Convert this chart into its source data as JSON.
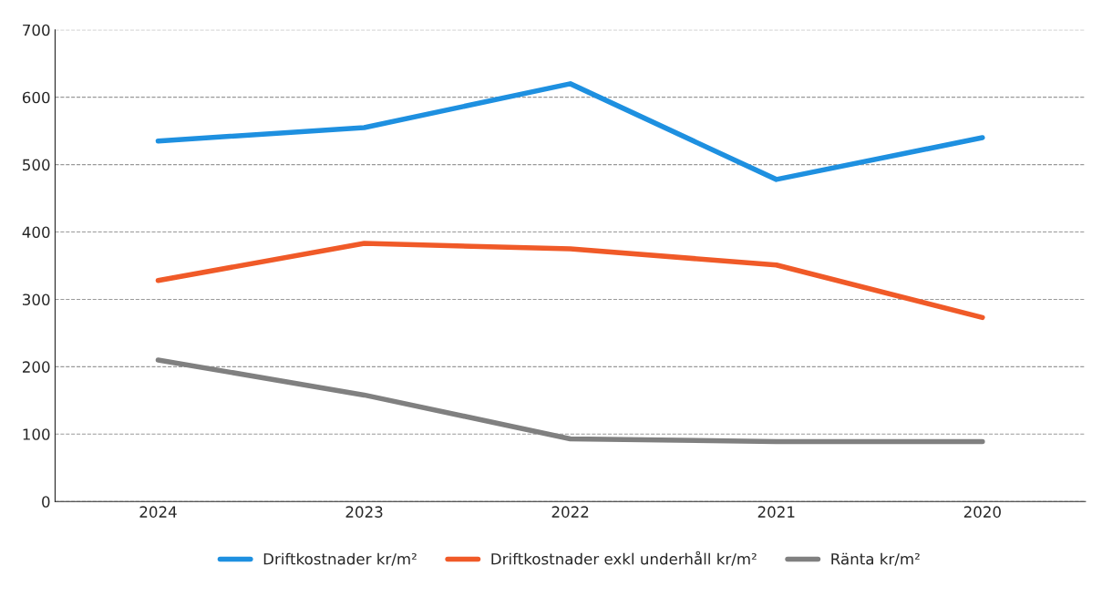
{
  "chart_data": {
    "type": "line",
    "categories": [
      "2024",
      "2023",
      "2022",
      "2021",
      "2020"
    ],
    "series": [
      {
        "name": "Driftkostnader kr/m²",
        "color": "#1e90e0",
        "values": [
          535,
          555,
          620,
          478,
          540
        ]
      },
      {
        "name": "Driftkostnader exkl underhåll kr/m²",
        "color": "#f05a28",
        "values": [
          328,
          383,
          375,
          351,
          273
        ]
      },
      {
        "name": "Ränta kr/m²",
        "color": "#808080",
        "values": [
          210,
          158,
          93,
          89,
          89
        ]
      }
    ],
    "ylim": [
      0,
      700
    ],
    "yticks": [
      0,
      100,
      200,
      300,
      400,
      500,
      600,
      700
    ],
    "grid": "y",
    "legend": "bottom",
    "marker": "none",
    "line_style": "solid"
  }
}
